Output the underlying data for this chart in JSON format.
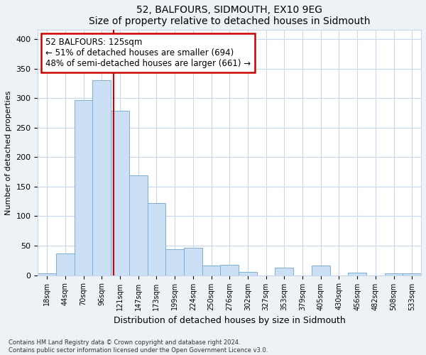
{
  "title": "52, BALFOURS, SIDMOUTH, EX10 9EG",
  "subtitle": "Size of property relative to detached houses in Sidmouth",
  "xlabel": "Distribution of detached houses by size in Sidmouth",
  "ylabel": "Number of detached properties",
  "bar_labels": [
    "18sqm",
    "44sqm",
    "70sqm",
    "96sqm",
    "121sqm",
    "147sqm",
    "173sqm",
    "199sqm",
    "224sqm",
    "250sqm",
    "276sqm",
    "302sqm",
    "327sqm",
    "353sqm",
    "379sqm",
    "405sqm",
    "430sqm",
    "456sqm",
    "482sqm",
    "508sqm",
    "533sqm"
  ],
  "bar_values": [
    3,
    37,
    296,
    330,
    279,
    169,
    122,
    44,
    46,
    16,
    17,
    5,
    0,
    13,
    0,
    16,
    0,
    4,
    0,
    3,
    3
  ],
  "bar_color": "#cce0f5",
  "bar_edge_color": "#7ab0d8",
  "property_line_color": "#cc0000",
  "annotation_text": "52 BALFOURS: 125sqm\n← 51% of detached houses are smaller (694)\n48% of semi-detached houses are larger (661) →",
  "annotation_box_color": "#ffffff",
  "annotation_box_edge": "#cc0000",
  "ylim": [
    0,
    415
  ],
  "yticks": [
    0,
    50,
    100,
    150,
    200,
    250,
    300,
    350,
    400
  ],
  "footer_text": "Contains HM Land Registry data © Crown copyright and database right 2024.\nContains public sector information licensed under the Open Government Licence v3.0.",
  "bg_color": "#edf2f7",
  "plot_bg_color": "#ffffff",
  "grid_color": "#c8d8ea"
}
